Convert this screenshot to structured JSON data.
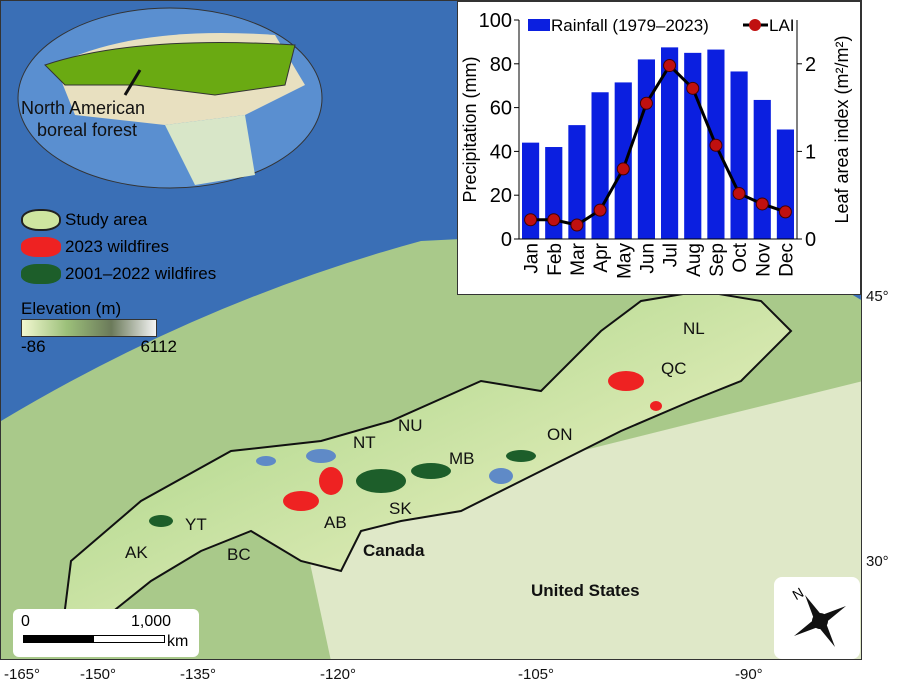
{
  "inset": {
    "label_line1": "North American",
    "label_line2": "boreal forest"
  },
  "legend": {
    "items": [
      {
        "label": "Study area",
        "color": "#cfe6a0"
      },
      {
        "label": "2023 wildfires",
        "color": "#ee2222"
      },
      {
        "label": "2001–2022 wildfires",
        "color": "#1d5e2a"
      }
    ],
    "elevation_title": "Elevation (m)",
    "elevation_min": "-86",
    "elevation_max": "6112"
  },
  "regions": [
    "AK",
    "YT",
    "BC",
    "NT",
    "NU",
    "AB",
    "SK",
    "MB",
    "ON",
    "QC",
    "NL"
  ],
  "countries": [
    "Canada",
    "United States"
  ],
  "lon_ticks": [
    "-165°",
    "-150°",
    "-135°",
    "-120°",
    "-105°",
    "-90°"
  ],
  "lat_ticks": [
    "45°",
    "30°"
  ],
  "scalebar": {
    "start": "0",
    "end": "1,000",
    "unit": "km"
  },
  "compass_label": "N",
  "chart_data": {
    "type": "bar+line",
    "categories": [
      "Jan",
      "Feb",
      "Mar",
      "Apr",
      "May",
      "Jun",
      "Jul",
      "Aug",
      "Sep",
      "Oct",
      "Nov",
      "Dec"
    ],
    "series": [
      {
        "name": "Rainfall (1979–2023)",
        "type": "bar",
        "axis": "left",
        "color": "#0b1fe0",
        "values": [
          44,
          42,
          52,
          67,
          71.5,
          82,
          87.5,
          85,
          86.5,
          76.5,
          63.5,
          50
        ]
      },
      {
        "name": "LAI",
        "type": "line",
        "axis": "right",
        "color": "#c01010",
        "values": [
          0.22,
          0.22,
          0.16,
          0.33,
          0.8,
          1.55,
          1.98,
          1.72,
          1.07,
          0.52,
          0.4,
          0.31
        ]
      }
    ],
    "ylabel": "Precipitation (mm)",
    "ylabel_right": "Leaf area index (m²/m²)",
    "ylim": [
      0,
      100
    ],
    "ylim_right": [
      0,
      2.5
    ],
    "yticks": [
      "0",
      "20",
      "40",
      "60",
      "80",
      "100"
    ],
    "yticks_right": [
      "0",
      "1",
      "2"
    ],
    "legend": "top"
  }
}
